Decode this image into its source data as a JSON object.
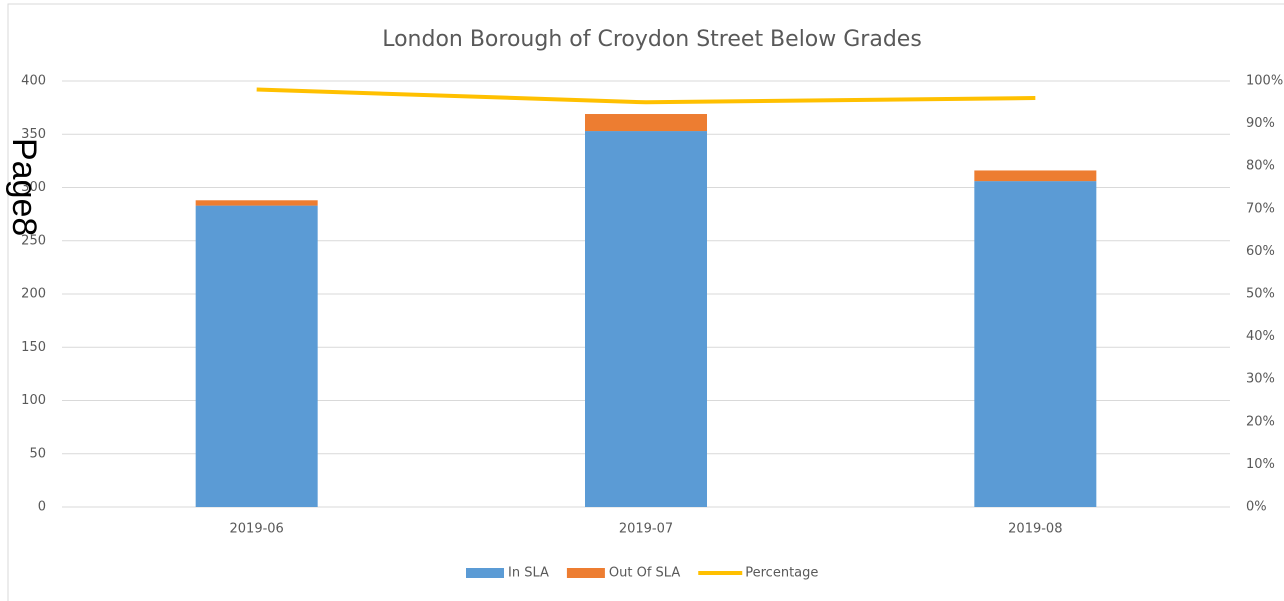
{
  "page_label": "Page8",
  "chart_data": {
    "type": "bar",
    "stacked": true,
    "title": "London Borough of Croydon Street Below Grades",
    "categories": [
      "2019-06",
      "2019-07",
      "2019-08"
    ],
    "series": [
      {
        "name": "In SLA",
        "color": "#5b9bd5",
        "values": [
          283,
          353,
          306
        ]
      },
      {
        "name": "Out Of SLA",
        "color": "#ed7d31",
        "values": [
          5,
          16,
          10
        ]
      },
      {
        "name": "Percentage",
        "color": "#ffc000",
        "type": "line",
        "axis": "y2",
        "values": [
          98,
          95,
          96
        ]
      }
    ],
    "ylim": [
      0,
      400
    ],
    "yticks": [
      0,
      50,
      100,
      150,
      200,
      250,
      300,
      350,
      400
    ],
    "y2lim": [
      0,
      100
    ],
    "y2ticks": [
      {
        "value": 0,
        "label": "0%"
      },
      {
        "value": 10,
        "label": "10%"
      },
      {
        "value": 20,
        "label": "20%"
      },
      {
        "value": 30,
        "label": "30%"
      },
      {
        "value": 40,
        "label": "40%"
      },
      {
        "value": 50,
        "label": "50%"
      },
      {
        "value": 60,
        "label": "60%"
      },
      {
        "value": 70,
        "label": "70%"
      },
      {
        "value": 80,
        "label": "80%"
      },
      {
        "value": 90,
        "label": "90%"
      },
      {
        "value": 100,
        "label": "100%"
      }
    ],
    "grid": true,
    "legend": "bottom"
  }
}
